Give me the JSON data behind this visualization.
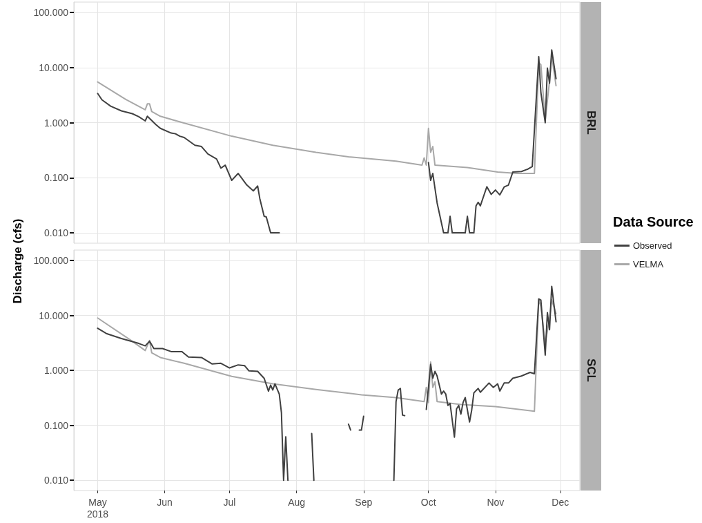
{
  "chart_data": [
    {
      "type": "line",
      "title": "BRL",
      "ylabel": "Discharge (cfs)",
      "legend_title": "Data Source",
      "legend": "right",
      "grid": true,
      "log": "y",
      "tick_labels": "y",
      "xlim": [
        "2018-04-20",
        "2018-12-10"
      ],
      "xticks": [
        {
          "value": "2018-05-01",
          "label": null
        },
        {
          "value": "2018-06-01",
          "label": null
        },
        {
          "value": "2018-07-01",
          "label": null
        },
        {
          "value": "2018-08-01",
          "label": null
        },
        {
          "value": "2018-09-01",
          "label": null
        },
        {
          "value": "2018-10-01",
          "label": null
        },
        {
          "value": "2018-11-01",
          "label": null
        },
        {
          "value": "2018-12-01",
          "label": null
        }
      ],
      "ylim": [
        0.0065,
        155
      ],
      "yticks": [
        {
          "value": 0.01,
          "label": "0.010"
        },
        {
          "value": 0.1,
          "label": "0.100"
        },
        {
          "value": 1,
          "label": "1.000"
        },
        {
          "value": 10,
          "label": "10.000"
        },
        {
          "value": 100,
          "label": "100.000"
        }
      ],
      "series": [
        {
          "name": "Observed",
          "color": "#404040",
          "x": [
            "2018-05-01",
            "2018-05-03",
            "2018-05-07",
            "2018-05-12",
            "2018-05-17",
            "2018-05-20",
            "2018-05-23",
            "2018-05-24",
            "2018-05-28",
            "2018-05-30",
            "2018-06-04",
            "2018-06-06",
            "2018-06-08",
            "2018-06-10",
            "2018-06-15",
            "2018-06-18",
            "2018-06-21",
            "2018-06-25",
            "2018-06-27",
            "2018-06-29",
            "2018-07-02",
            "2018-07-05",
            "2018-07-09",
            "2018-07-12",
            "2018-07-14",
            "2018-07-15",
            "2018-07-17",
            "2018-07-18",
            "2018-07-20",
            "2018-07-24",
            "2018-08-15",
            "2018-10-01",
            "2018-10-02",
            "2018-10-03",
            "2018-10-05",
            "2018-10-08",
            "2018-10-10",
            "2018-10-11",
            "2018-10-12",
            "2018-10-18",
            "2018-10-19",
            "2018-10-20",
            "2018-10-22",
            "2018-10-23",
            "2018-10-24",
            "2018-10-25",
            "2018-10-28",
            "2018-10-30",
            "2018-11-01",
            "2018-11-03",
            "2018-11-05",
            "2018-11-07",
            "2018-11-09",
            "2018-11-13",
            "2018-11-16",
            "2018-11-18",
            "2018-11-21",
            "2018-11-22",
            "2018-11-24",
            "2018-11-25",
            "2018-11-26",
            "2018-11-27",
            "2018-11-29"
          ],
          "values": [
            3.4,
            2.6,
            2.0,
            1.64,
            1.46,
            1.29,
            1.08,
            1.31,
            0.92,
            0.79,
            0.65,
            0.63,
            0.57,
            0.54,
            0.39,
            0.37,
            0.27,
            0.22,
            0.15,
            0.17,
            0.09,
            0.12,
            0.074,
            0.058,
            0.071,
            0.042,
            0.02,
            0.0195,
            0.01,
            0.01,
            null,
            0.19,
            0.09,
            0.12,
            0.035,
            0.01,
            0.01,
            0.02,
            0.01,
            0.01,
            0.02,
            0.01,
            0.01,
            0.031,
            0.036,
            0.031,
            0.069,
            0.05,
            0.06,
            0.049,
            0.068,
            0.074,
            0.127,
            0.13,
            0.144,
            0.16,
            15.8,
            3.5,
            1.0,
            9.8,
            5.2,
            21,
            6.3
          ]
        },
        {
          "name": "VELMA",
          "color": "#a8a8a8",
          "x": [
            "2018-05-01",
            "2018-05-14",
            "2018-05-23",
            "2018-05-24",
            "2018-05-25",
            "2018-05-26",
            "2018-05-30",
            "2018-06-09",
            "2018-07-02",
            "2018-07-21",
            "2018-08-10",
            "2018-08-25",
            "2018-09-16",
            "2018-09-28",
            "2018-09-29",
            "2018-09-30",
            "2018-10-01",
            "2018-10-02",
            "2018-10-03",
            "2018-10-04",
            "2018-10-19",
            "2018-11-02",
            "2018-11-11",
            "2018-11-19",
            "2018-11-21",
            "2018-11-22",
            "2018-11-24",
            "2018-11-26",
            "2018-11-27",
            "2018-11-29"
          ],
          "values": [
            5.5,
            2.65,
            1.72,
            2.2,
            2.2,
            1.6,
            1.31,
            1.01,
            0.57,
            0.39,
            0.29,
            0.24,
            0.2,
            0.17,
            0.23,
            0.17,
            0.79,
            0.29,
            0.37,
            0.17,
            0.154,
            0.127,
            0.12,
            0.12,
            12.4,
            11.3,
            1.1,
            5.7,
            16.6,
            4.7
          ]
        }
      ]
    },
    {
      "type": "line",
      "title": "SCL",
      "grid": true,
      "log": "y",
      "xlim": [
        "2018-04-20",
        "2018-12-10"
      ],
      "xticks": [
        {
          "value": "2018-05-01",
          "label": "May\n2018"
        },
        {
          "value": "2018-06-01",
          "label": "Jun"
        },
        {
          "value": "2018-07-01",
          "label": "Jul"
        },
        {
          "value": "2018-08-01",
          "label": "Aug"
        },
        {
          "value": "2018-09-01",
          "label": "Sep"
        },
        {
          "value": "2018-10-01",
          "label": "Oct"
        },
        {
          "value": "2018-11-01",
          "label": "Nov"
        },
        {
          "value": "2018-12-01",
          "label": "Dec"
        }
      ],
      "ylim": [
        0.0065,
        155
      ],
      "yticks": [
        {
          "value": 0.01,
          "label": "0.010"
        },
        {
          "value": 0.1,
          "label": "0.100"
        },
        {
          "value": 1,
          "label": "1.000"
        },
        {
          "value": 10,
          "label": "10.000"
        },
        {
          "value": 100,
          "label": "100.000"
        }
      ],
      "series": [
        {
          "color": "#404040",
          "x": [
            "2018-05-01",
            "2018-05-05",
            "2018-05-12",
            "2018-05-20",
            "2018-05-23",
            "2018-05-25",
            "2018-05-27",
            "2018-05-31",
            "2018-06-04",
            "2018-06-09",
            "2018-06-12",
            "2018-06-18",
            "2018-06-23",
            "2018-06-27",
            "2018-07-01",
            "2018-07-05",
            "2018-07-08",
            "2018-07-10",
            "2018-07-14",
            "2018-07-17",
            "2018-07-19",
            "2018-07-20",
            "2018-07-21",
            "2018-07-22",
            "2018-07-24",
            "2018-07-25",
            "2018-07-26",
            "2018-07-27",
            "2018-07-28",
            "2018-08-01",
            "2018-08-08",
            "2018-08-09",
            "2018-08-15",
            "2018-08-25",
            "2018-08-26",
            "2018-08-28",
            "2018-08-30",
            "2018-08-31",
            "2018-09-01",
            "2018-09-08",
            "2018-09-15",
            "2018-09-16",
            "2018-09-17",
            "2018-09-18",
            "2018-09-19",
            "2018-09-20",
            "2018-09-25",
            "2018-09-30",
            "2018-10-01",
            "2018-10-02",
            "2018-10-03",
            "2018-10-04",
            "2018-10-05",
            "2018-10-07",
            "2018-10-08",
            "2018-10-09",
            "2018-10-10",
            "2018-10-11",
            "2018-10-13",
            "2018-10-14",
            "2018-10-15",
            "2018-10-16",
            "2018-10-17",
            "2018-10-18",
            "2018-10-20",
            "2018-10-21",
            "2018-10-22",
            "2018-10-24",
            "2018-10-25",
            "2018-10-29",
            "2018-10-31",
            "2018-11-02",
            "2018-11-03",
            "2018-11-05",
            "2018-11-07",
            "2018-11-09",
            "2018-11-13",
            "2018-11-17",
            "2018-11-19",
            "2018-11-21",
            "2018-11-22",
            "2018-11-24",
            "2018-11-25",
            "2018-11-26",
            "2018-11-27",
            "2018-11-29"
          ],
          "values": [
            5.85,
            4.7,
            3.8,
            3.1,
            2.8,
            3.4,
            2.5,
            2.5,
            2.2,
            2.2,
            1.75,
            1.72,
            1.31,
            1.35,
            1.11,
            1.26,
            1.22,
            0.98,
            0.96,
            0.72,
            0.42,
            0.54,
            0.44,
            0.57,
            0.37,
            0.17,
            0.01,
            0.062,
            0.01,
            null,
            0.071,
            0.01,
            null,
            0.105,
            0.082,
            null,
            0.082,
            0.082,
            0.146,
            null,
            0.01,
            0.27,
            0.44,
            0.47,
            0.154,
            0.15,
            null,
            0.195,
            0.49,
            1.29,
            0.72,
            0.96,
            0.79,
            0.37,
            0.42,
            0.37,
            0.23,
            0.25,
            0.061,
            0.2,
            0.23,
            0.16,
            0.26,
            0.32,
            0.115,
            0.19,
            0.39,
            0.47,
            0.4,
            0.59,
            0.49,
            0.57,
            0.42,
            0.59,
            0.59,
            0.72,
            0.79,
            0.92,
            0.87,
            20,
            19,
            1.9,
            11.3,
            5.5,
            34,
            7.7
          ]
        },
        {
          "color": "#a8a8a8",
          "x": [
            "2018-05-01",
            "2018-05-17",
            "2018-05-23",
            "2018-05-25",
            "2018-05-26",
            "2018-05-30",
            "2018-06-10",
            "2018-07-02",
            "2018-07-21",
            "2018-08-10",
            "2018-08-31",
            "2018-09-16",
            "2018-09-29",
            "2018-09-30",
            "2018-10-01",
            "2018-10-02",
            "2018-10-03",
            "2018-10-04",
            "2018-10-05",
            "2018-10-16",
            "2018-11-01",
            "2018-11-19",
            "2018-11-21",
            "2018-11-22",
            "2018-11-24",
            "2018-11-26",
            "2018-11-27",
            "2018-11-29"
          ],
          "values": [
            9.0,
            3.4,
            2.3,
            3.5,
            2.1,
            1.72,
            1.35,
            0.78,
            0.57,
            0.45,
            0.36,
            0.32,
            0.27,
            0.49,
            0.26,
            1.42,
            0.49,
            0.62,
            0.27,
            0.24,
            0.22,
            0.18,
            20,
            14.4,
            3.1,
            8.9,
            19.2,
            10.8
          ]
        }
      ]
    }
  ]
}
